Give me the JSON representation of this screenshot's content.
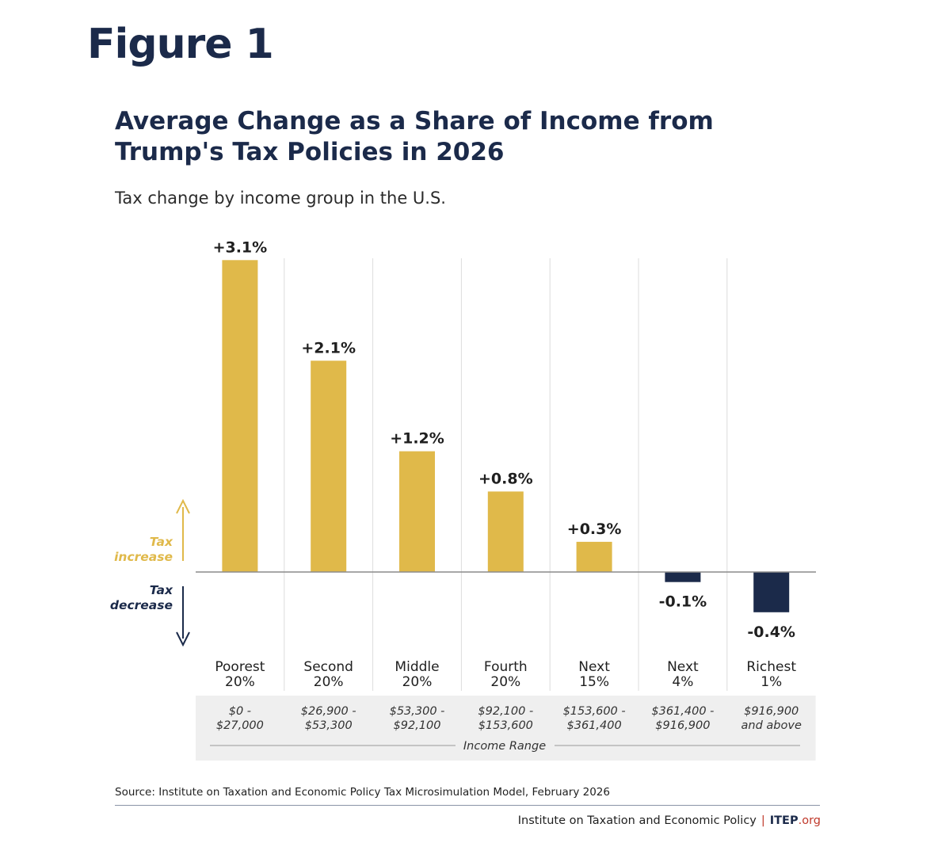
{
  "figure_label": "Figure 1",
  "colors": {
    "increase": "#e0b94a",
    "decrease": "#1b2a4a",
    "text": "#1b2a4a",
    "grid": "#dcdcdc",
    "panel": "#efefef"
  },
  "chart_data": {
    "type": "bar",
    "title": "Average Change as a Share of Income from Trump's Tax Policies in 2026",
    "subtitle": "Tax change by income group in the U.S.",
    "categories": [
      "Poorest 20%",
      "Second 20%",
      "Middle 20%",
      "Fourth 20%",
      "Next 15%",
      "Next 4%",
      "Richest 1%"
    ],
    "category_lines": [
      [
        "Poorest",
        "20%"
      ],
      [
        "Second",
        "20%"
      ],
      [
        "Middle",
        "20%"
      ],
      [
        "Fourth",
        "20%"
      ],
      [
        "Next",
        "15%"
      ],
      [
        "Next",
        "4%"
      ],
      [
        "Richest",
        "1%"
      ]
    ],
    "values": [
      3.1,
      2.1,
      1.2,
      0.8,
      0.3,
      -0.1,
      -0.4
    ],
    "value_labels": [
      "+3.1%",
      "+2.1%",
      "+1.2%",
      "+0.8%",
      "+0.3%",
      "-0.1%",
      "-0.4%"
    ],
    "income_ranges": [
      [
        "$0 -",
        "$27,000"
      ],
      [
        "$26,900 -",
        "$53,300"
      ],
      [
        "$53,300 -",
        "$92,100"
      ],
      [
        "$92,100 -",
        "$153,600"
      ],
      [
        "$153,600 -",
        "$361,400"
      ],
      [
        "$361,400 -",
        "$916,900"
      ],
      [
        "$916,900",
        "and above"
      ]
    ],
    "income_range_label": "Income Range",
    "increase_label": [
      "Tax",
      "increase"
    ],
    "decrease_label": [
      "Tax",
      "decrease"
    ],
    "ylim": [
      -0.4,
      3.1
    ],
    "grid": true,
    "xlabel": "",
    "ylabel": ""
  },
  "source": "Source: Institute on Taxation and Economic Policy Tax Microsimulation Model, February 2026",
  "footer": {
    "org": "Institute on Taxation and Economic Policy",
    "separator": "|",
    "brand": "ITEP",
    "brand_suffix": ".org"
  }
}
